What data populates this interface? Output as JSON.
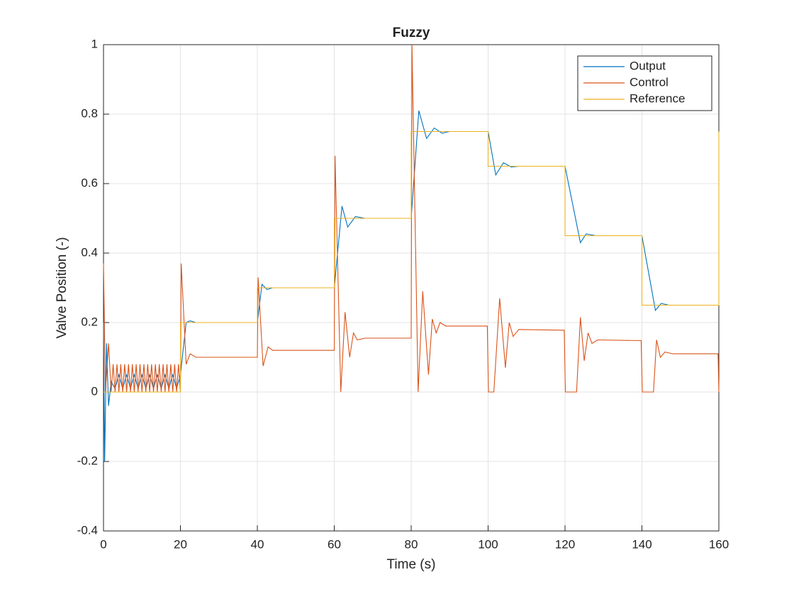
{
  "chart_data": {
    "type": "line",
    "title": "Fuzzy",
    "xlabel": "Time (s)",
    "ylabel": "Valve Position (-)",
    "xlim": [
      0,
      160
    ],
    "ylim": [
      -0.4,
      1
    ],
    "xticks": [
      0,
      20,
      40,
      60,
      80,
      100,
      120,
      140,
      160
    ],
    "yticks": [
      -0.4,
      -0.2,
      0,
      0.2,
      0.4,
      0.6,
      0.8,
      1
    ],
    "grid": true,
    "legend": "northeast",
    "series": [
      {
        "name": "Output",
        "color": "#0072BD",
        "x": [
          0,
          0.3,
          0.8,
          1.3,
          2,
          3,
          4,
          5,
          6,
          7,
          8,
          9,
          10,
          11,
          12,
          13,
          14,
          15,
          16,
          17,
          18,
          19,
          20,
          21.5,
          22.5,
          24,
          40,
          41.2,
          42.5,
          44,
          60,
          62,
          63.5,
          65.5,
          68,
          80,
          82,
          84,
          86,
          88,
          90,
          100,
          102,
          104,
          106,
          108,
          120,
          124,
          125.5,
          128,
          140,
          143.5,
          145,
          147,
          160
        ],
        "values": [
          0.2,
          -0.2,
          0.14,
          -0.04,
          0.03,
          0.01,
          0.05,
          0.01,
          0.05,
          0.01,
          0.05,
          0.01,
          0.05,
          0.01,
          0.05,
          0.01,
          0.05,
          0.01,
          0.05,
          0.01,
          0.05,
          0.01,
          0.05,
          0.2,
          0.205,
          0.2,
          0.2,
          0.31,
          0.295,
          0.3,
          0.3,
          0.535,
          0.475,
          0.505,
          0.5,
          0.5,
          0.81,
          0.73,
          0.76,
          0.745,
          0.75,
          0.75,
          0.625,
          0.66,
          0.648,
          0.65,
          0.65,
          0.43,
          0.455,
          0.45,
          0.45,
          0.235,
          0.255,
          0.25,
          0.25
        ]
      },
      {
        "name": "Control",
        "color": "#D95319",
        "x": [
          0,
          0.5,
          1.3,
          2,
          2.5,
          3,
          3.5,
          4,
          4.5,
          5,
          5.5,
          6,
          6.5,
          7,
          7.5,
          8,
          8.5,
          9,
          9.5,
          10,
          10.5,
          11,
          11.5,
          12,
          12.5,
          13,
          13.5,
          14,
          14.5,
          15,
          15.5,
          16,
          16.5,
          17,
          17.5,
          18,
          18.5,
          19,
          19.5,
          20,
          20.2,
          21.5,
          22.5,
          24,
          40,
          40.2,
          41.5,
          42.8,
          44,
          60,
          60.2,
          61.7,
          62.8,
          64,
          65,
          66,
          68,
          80,
          80.2,
          81.8,
          83,
          84.5,
          85.5,
          86.5,
          87.5,
          89,
          99.8,
          100.1,
          101.5,
          103,
          104.5,
          105.5,
          106.5,
          108,
          119.8,
          120.1,
          123,
          124,
          125,
          126,
          127,
          128.5,
          139.8,
          140.1,
          143,
          143.8,
          144.8,
          146,
          148,
          159.8,
          160
        ],
        "values": [
          0.37,
          0,
          0.14,
          0,
          0.08,
          0,
          0.08,
          0,
          0.08,
          0,
          0.08,
          0,
          0.08,
          0,
          0.08,
          0,
          0.08,
          0,
          0.08,
          0,
          0.08,
          0,
          0.08,
          0,
          0.08,
          0,
          0.08,
          0,
          0.08,
          0,
          0.08,
          0,
          0.08,
          0,
          0.08,
          0,
          0.08,
          0,
          0.08,
          0,
          0.37,
          0.08,
          0.11,
          0.1,
          0.1,
          0.33,
          0.075,
          0.13,
          0.12,
          0.12,
          0.68,
          0,
          0.23,
          0.1,
          0.17,
          0.15,
          0.155,
          0.155,
          1,
          0,
          0.29,
          0.05,
          0.21,
          0.17,
          0.2,
          0.19,
          0.19,
          0,
          0,
          0.27,
          0.07,
          0.2,
          0.16,
          0.18,
          0.178,
          0,
          0,
          0.215,
          0.09,
          0.17,
          0.14,
          0.15,
          0.148,
          0,
          0,
          0.15,
          0.1,
          0.115,
          0.11,
          0.11,
          0
        ]
      },
      {
        "name": "Reference",
        "color": "#EDB120",
        "x": [
          0,
          20,
          20,
          40,
          40,
          60,
          60,
          80,
          80,
          100,
          100,
          120,
          120,
          140,
          140,
          160,
          160
        ],
        "values": [
          0,
          0,
          0.2,
          0.2,
          0.3,
          0.3,
          0.5,
          0.5,
          0.75,
          0.75,
          0.65,
          0.65,
          0.45,
          0.45,
          0.25,
          0.25,
          0.75
        ]
      }
    ]
  }
}
